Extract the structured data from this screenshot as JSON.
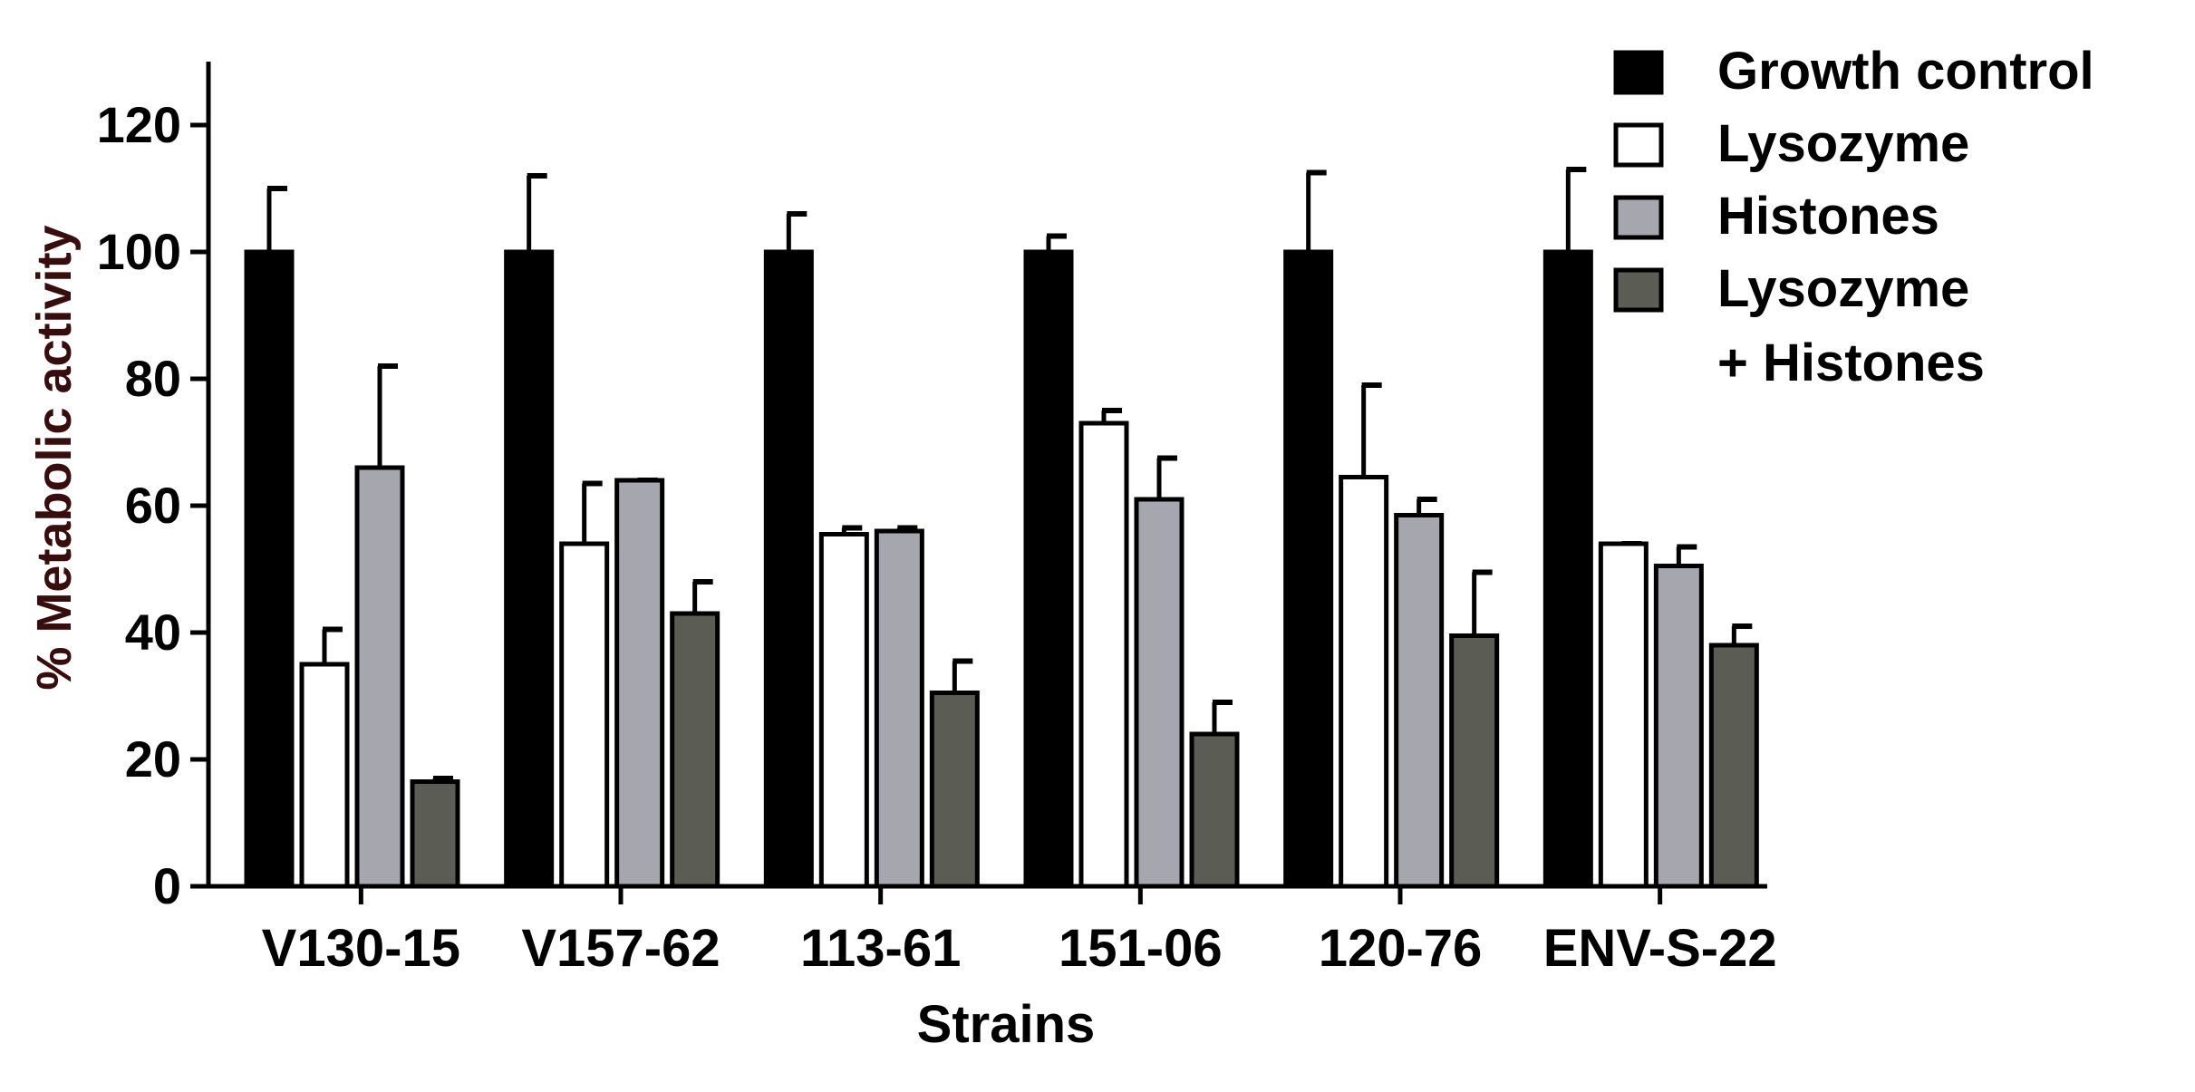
{
  "chart_data": {
    "type": "bar",
    "title": "",
    "xlabel": "Strains",
    "ylabel": "% Metabolic activity",
    "ylim": [
      0,
      130
    ],
    "yticks": [
      0,
      20,
      40,
      60,
      80,
      100,
      120
    ],
    "categories": [
      "V130-15",
      "V157-62",
      "113-61",
      "151-06",
      "120-76",
      "ENV-S-22"
    ],
    "grid": false,
    "legend_position": "top-right",
    "series": [
      {
        "name": "Growth control",
        "color": "#000000",
        "values": [
          100,
          100,
          100,
          100,
          100,
          100
        ],
        "errors": [
          10,
          12,
          6,
          2.5,
          12.5,
          13
        ]
      },
      {
        "name": "Lysozyme",
        "color": "#ffffff",
        "values": [
          35,
          54,
          55.5,
          73,
          64.5,
          54
        ],
        "errors": [
          5.5,
          9.5,
          1,
          2,
          14.5,
          0
        ]
      },
      {
        "name": "Histones",
        "color": "#a6a6ae",
        "values": [
          66,
          64,
          56,
          61,
          58.5,
          50.5
        ],
        "errors": [
          16,
          0,
          0.5,
          6.5,
          2.5,
          3
        ]
      },
      {
        "name": "Lysozyme\n+ Histones",
        "color": "#5b5d55",
        "values": [
          16.5,
          43,
          30.5,
          24,
          39.5,
          38
        ],
        "errors": [
          0.5,
          5,
          5,
          5,
          10,
          3
        ]
      }
    ]
  }
}
